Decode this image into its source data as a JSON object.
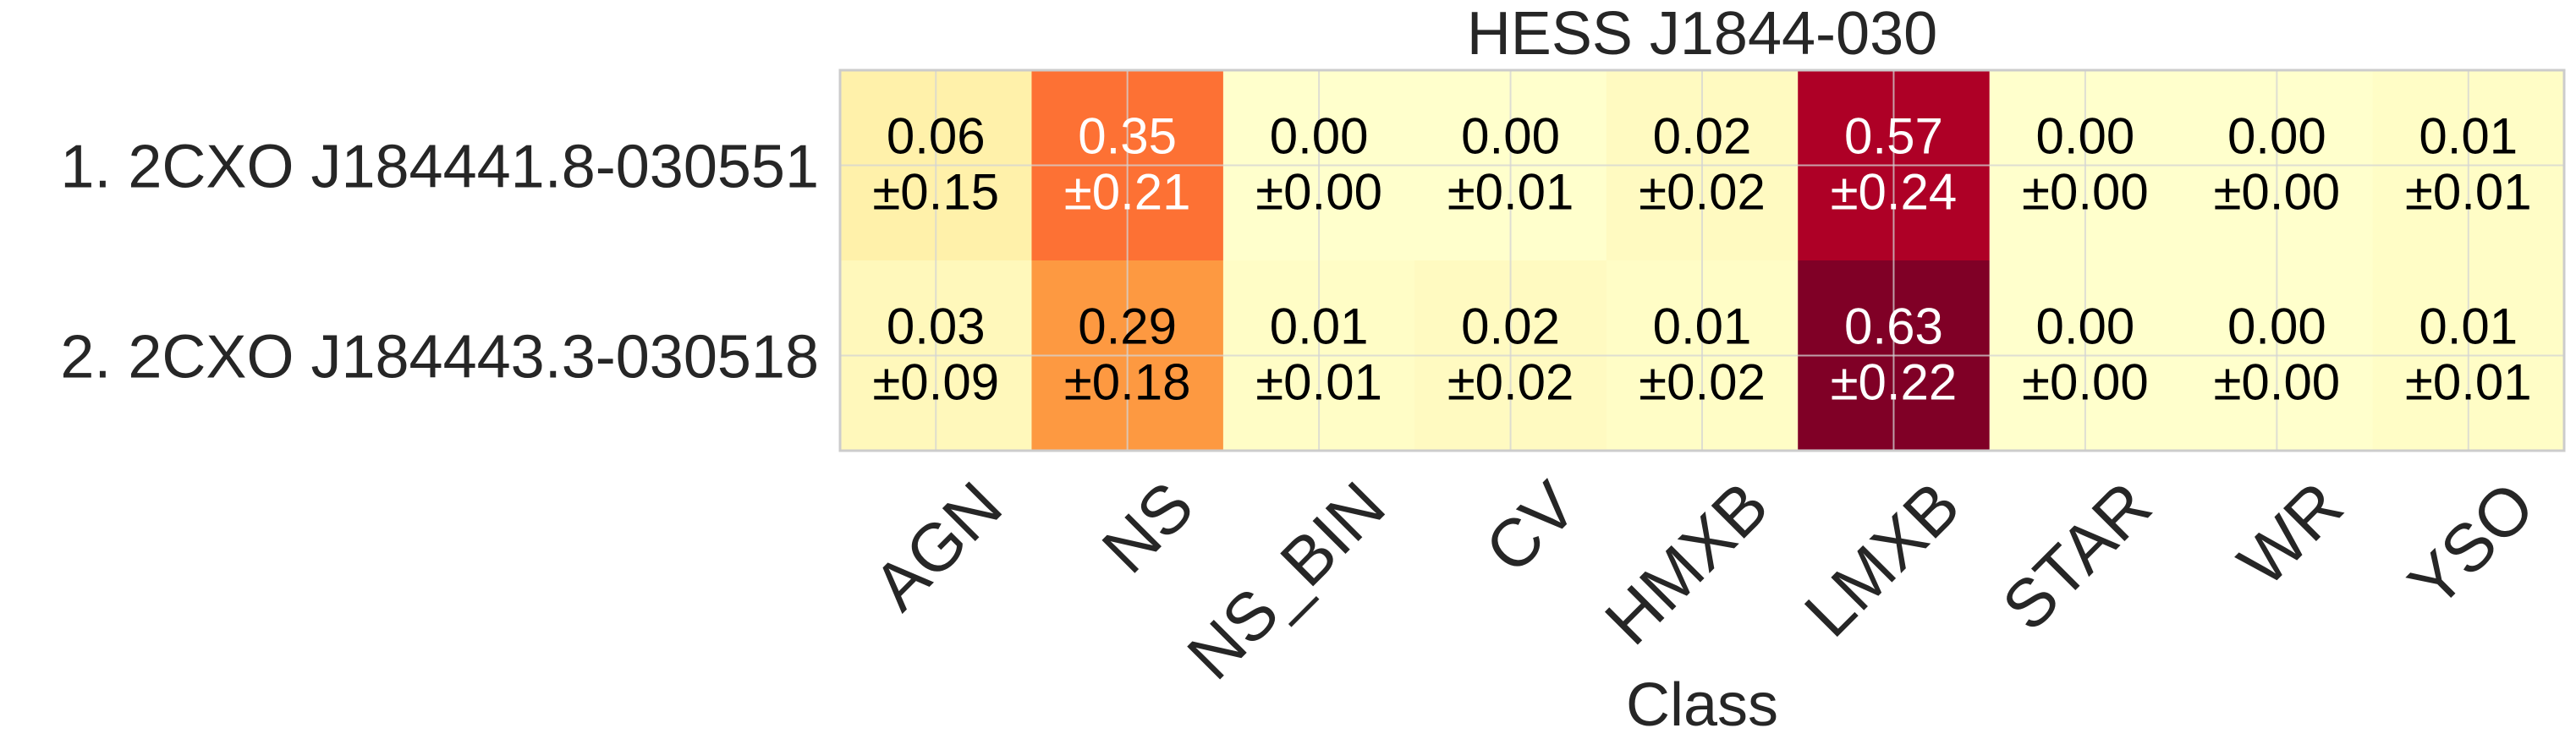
{
  "chart_data": {
    "type": "heatmap",
    "title": "HESS J1844-030",
    "xlabel": "Class",
    "ylabel": "",
    "columns": [
      "AGN",
      "NS",
      "NS_BIN",
      "CV",
      "HMXB",
      "LMXB",
      "STAR",
      "WR",
      "YSO"
    ],
    "rows": [
      "1.  2CXO J184441.8-030551",
      "2.  2CXO J184443.3-030518"
    ],
    "values": [
      [
        0.06,
        0.35,
        0.0,
        0.0,
        0.02,
        0.57,
        0.0,
        0.0,
        0.01
      ],
      [
        0.03,
        0.29,
        0.01,
        0.02,
        0.01,
        0.63,
        0.0,
        0.0,
        0.01
      ]
    ],
    "errors": [
      [
        0.15,
        0.21,
        0.0,
        0.01,
        0.02,
        0.24,
        0.0,
        0.0,
        0.01
      ],
      [
        0.09,
        0.18,
        0.01,
        0.02,
        0.02,
        0.22,
        0.0,
        0.0,
        0.01
      ]
    ],
    "value_labels": [
      [
        "0.06",
        "0.35",
        "0.00",
        "0.00",
        "0.02",
        "0.57",
        "0.00",
        "0.00",
        "0.01"
      ],
      [
        "0.03",
        "0.29",
        "0.01",
        "0.02",
        "0.01",
        "0.63",
        "0.00",
        "0.00",
        "0.01"
      ]
    ],
    "error_labels": [
      [
        "±0.15",
        "±0.21",
        "±0.00",
        "±0.01",
        "±0.02",
        "±0.24",
        "±0.00",
        "±0.00",
        "±0.01"
      ],
      [
        "±0.09",
        "±0.18",
        "±0.01",
        "±0.02",
        "±0.02",
        "±0.22",
        "±0.00",
        "±0.00",
        "±0.01"
      ]
    ],
    "colormap": "YlOrRd",
    "vmin": 0,
    "vmax": 0.63,
    "grid": true,
    "colors": {
      "low": "#ffffcc",
      "high": "#800026",
      "frame": "#cccccc",
      "gridline": "#d4d4d4",
      "text_dark": "#000000",
      "text_light": "#ffffff"
    }
  }
}
